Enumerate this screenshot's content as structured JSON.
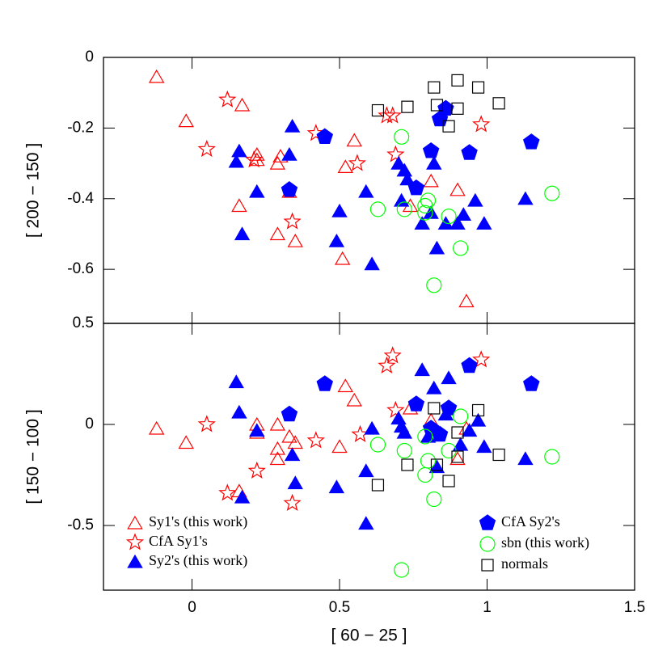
{
  "chart_data": [
    {
      "type": "scatter",
      "ylabel": "[ 200 − 150 ]",
      "xlim": [
        -0.3,
        1.5
      ],
      "xticks": [
        0,
        0.5,
        1,
        1.5
      ],
      "ylim": [
        -0.753,
        0
      ],
      "yticks": [
        0,
        -0.2,
        -0.4,
        -0.6
      ],
      "series": [
        {
          "color": "#ff0000",
          "marker": "triangle-open",
          "x": [
            -0.12,
            -0.02,
            0.17,
            0.22,
            0.22,
            0.29,
            0.3,
            0.16,
            0.33,
            0.29,
            0.35,
            0.51,
            0.52,
            0.55,
            0.74,
            0.81,
            0.9,
            0.93
          ],
          "values": [
            -0.055,
            -0.18,
            -0.135,
            -0.275,
            -0.29,
            -0.3,
            -0.28,
            -0.42,
            -0.38,
            -0.5,
            -0.52,
            -0.57,
            -0.31,
            -0.235,
            -0.42,
            -0.35,
            -0.375,
            -0.69
          ]
        },
        {
          "color": "#ff0000",
          "marker": "star-open",
          "x": [
            0.12,
            0.05,
            0.21,
            0.42,
            0.34,
            0.56,
            0.66,
            0.68,
            0.69,
            0.98
          ],
          "values": [
            -0.12,
            -0.26,
            -0.29,
            -0.215,
            -0.465,
            -0.3,
            -0.165,
            -0.165,
            -0.275,
            -0.19
          ]
        },
        {
          "color": "#0000ff",
          "marker": "triangle",
          "x": [
            0.16,
            0.15,
            0.17,
            0.22,
            0.34,
            0.33,
            0.5,
            0.49,
            0.61,
            0.59,
            0.7,
            0.72,
            0.73,
            0.71,
            0.78,
            0.81,
            0.82,
            0.83,
            0.86,
            0.9,
            0.92,
            0.96,
            0.99,
            1.13
          ],
          "values": [
            -0.265,
            -0.295,
            -0.5,
            -0.38,
            -0.195,
            -0.275,
            -0.435,
            -0.52,
            -0.585,
            -0.38,
            -0.3,
            -0.32,
            -0.345,
            -0.405,
            -0.47,
            -0.44,
            -0.3,
            -0.54,
            -0.47,
            -0.47,
            -0.445,
            -0.405,
            -0.47,
            -0.4
          ]
        },
        {
          "color": "#0000ff",
          "marker": "pentagon",
          "x": [
            0.45,
            0.33,
            0.76,
            0.81,
            0.84,
            0.86,
            0.94,
            1.15
          ],
          "values": [
            -0.225,
            -0.375,
            -0.37,
            -0.265,
            -0.175,
            -0.145,
            -0.27,
            -0.24
          ]
        },
        {
          "color": "#00ff00",
          "marker": "circle-open",
          "x": [
            0.63,
            0.71,
            0.72,
            0.79,
            0.8,
            0.79,
            0.82,
            0.87,
            0.91,
            1.22
          ],
          "values": [
            -0.43,
            -0.225,
            -0.43,
            -0.42,
            -0.405,
            -0.44,
            -0.645,
            -0.45,
            -0.54,
            -0.385
          ]
        },
        {
          "color": "#000000",
          "marker": "square-open",
          "x": [
            0.63,
            0.73,
            0.82,
            0.83,
            0.87,
            0.9,
            0.9,
            0.97,
            1.04
          ],
          "values": [
            -0.15,
            -0.14,
            -0.085,
            -0.135,
            -0.195,
            -0.065,
            -0.145,
            -0.085,
            -0.13
          ]
        }
      ]
    },
    {
      "type": "scatter",
      "ylabel": "[ 150 − 100 ]",
      "xlabel": "[ 60 − 25 ]",
      "xlim": [
        -0.3,
        1.5
      ],
      "xticks": [
        0,
        0.5,
        1,
        1.5
      ],
      "ylim": [
        -0.82,
        0.5
      ],
      "yticks": [
        0.5,
        0,
        -0.5
      ],
      "series": [
        {
          "name": "Sy1's (this work)",
          "color": "#ff0000",
          "marker": "triangle-open",
          "x": [
            -0.12,
            -0.02,
            0.16,
            0.22,
            0.22,
            0.29,
            0.29,
            0.29,
            0.33,
            0.35,
            0.5,
            0.52,
            0.55,
            0.74,
            0.81,
            0.9,
            0.93
          ],
          "values": [
            -0.02,
            -0.09,
            -0.33,
            0,
            -0.04,
            0,
            -0.12,
            -0.17,
            -0.06,
            -0.09,
            -0.11,
            0.19,
            0.12,
            0.08,
            0.02,
            -0.17,
            -0.02
          ]
        },
        {
          "name": "CfA Sy1's",
          "color": "#ff0000",
          "marker": "star-open",
          "x": [
            0.12,
            0.05,
            0.22,
            0.42,
            0.34,
            0.57,
            0.66,
            0.68,
            0.69,
            0.98
          ],
          "values": [
            -0.34,
            0,
            -0.23,
            -0.08,
            -0.39,
            -0.05,
            0.29,
            0.34,
            0.07,
            0.32
          ]
        },
        {
          "name": "Sy2's (this work)",
          "color": "#0000ff",
          "marker": "triangle",
          "x": [
            0.15,
            0.16,
            0.17,
            0.22,
            0.34,
            0.35,
            0.49,
            0.59,
            0.59,
            0.61,
            0.7,
            0.71,
            0.72,
            0.78,
            0.8,
            0.82,
            0.83,
            0.86,
            0.87,
            0.91,
            0.94,
            0.97,
            0.99,
            1.13
          ],
          "values": [
            0.21,
            0.06,
            -0.36,
            -0.03,
            -0.15,
            -0.29,
            -0.31,
            -0.23,
            -0.49,
            -0.02,
            0.03,
            -0.01,
            -0.04,
            0.27,
            -0.06,
            0.18,
            -0.21,
            0.05,
            0.23,
            -0.1,
            -0.03,
            0.02,
            -0.11,
            -0.17
          ]
        },
        {
          "name": "CfA Sy2's",
          "color": "#0000ff",
          "marker": "pentagon",
          "x": [
            0.45,
            0.33,
            0.76,
            0.81,
            0.84,
            0.87,
            0.94,
            1.15
          ],
          "values": [
            0.2,
            0.05,
            0.1,
            -0.02,
            -0.05,
            0.08,
            0.29,
            0.2
          ]
        },
        {
          "name": "sbn (this work)",
          "color": "#00ff00",
          "marker": "circle-open",
          "x": [
            0.63,
            0.71,
            0.72,
            0.79,
            0.8,
            0.79,
            0.82,
            0.87,
            0.91,
            1.22
          ],
          "values": [
            -0.1,
            -0.72,
            -0.13,
            -0.06,
            -0.18,
            -0.25,
            -0.37,
            -0.13,
            0.04,
            -0.16
          ]
        },
        {
          "name": "normals",
          "color": "#000000",
          "marker": "square-open",
          "x": [
            0.63,
            0.73,
            0.82,
            0.83,
            0.87,
            0.9,
            0.9,
            0.97,
            1.04
          ],
          "values": [
            -0.3,
            -0.2,
            0.08,
            -0.2,
            -0.28,
            -0.16,
            -0.04,
            0.07,
            -0.15
          ]
        }
      ]
    }
  ]
}
